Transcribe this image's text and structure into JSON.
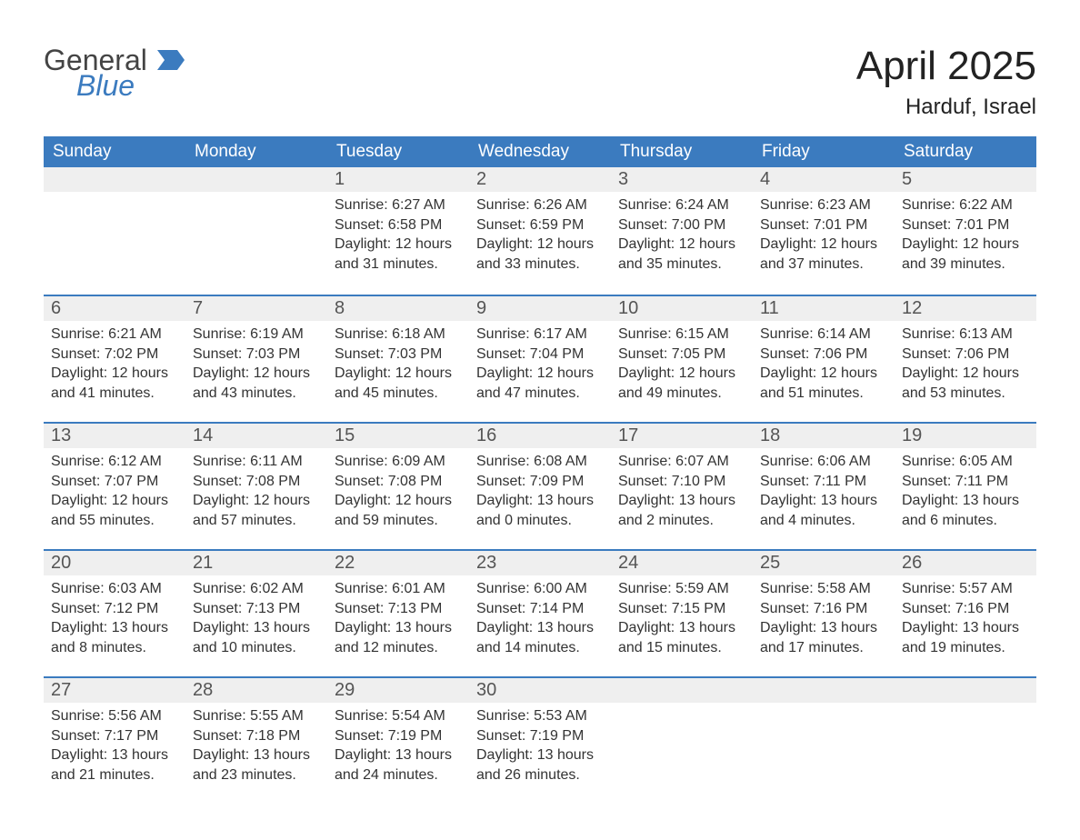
{
  "logo": {
    "word1": "General",
    "word2": "Blue"
  },
  "title": "April 2025",
  "location": "Harduf, Israel",
  "colors": {
    "brand_blue": "#3b7bbf",
    "header_text": "#ffffff",
    "daynum_bg": "#efefef",
    "text": "#333333",
    "title_text": "#222222",
    "page_bg": "#ffffff"
  },
  "typography": {
    "title_fontsize_pt": 33,
    "location_fontsize_pt": 18,
    "header_fontsize_pt": 14,
    "daynum_fontsize_pt": 15,
    "body_fontsize_pt": 12
  },
  "day_names": [
    "Sunday",
    "Monday",
    "Tuesday",
    "Wednesday",
    "Thursday",
    "Friday",
    "Saturday"
  ],
  "weeks": [
    [
      null,
      null,
      {
        "n": "1",
        "sunrise": "6:27 AM",
        "sunset": "6:58 PM",
        "daylight": "12 hours and 31 minutes."
      },
      {
        "n": "2",
        "sunrise": "6:26 AM",
        "sunset": "6:59 PM",
        "daylight": "12 hours and 33 minutes."
      },
      {
        "n": "3",
        "sunrise": "6:24 AM",
        "sunset": "7:00 PM",
        "daylight": "12 hours and 35 minutes."
      },
      {
        "n": "4",
        "sunrise": "6:23 AM",
        "sunset": "7:01 PM",
        "daylight": "12 hours and 37 minutes."
      },
      {
        "n": "5",
        "sunrise": "6:22 AM",
        "sunset": "7:01 PM",
        "daylight": "12 hours and 39 minutes."
      }
    ],
    [
      {
        "n": "6",
        "sunrise": "6:21 AM",
        "sunset": "7:02 PM",
        "daylight": "12 hours and 41 minutes."
      },
      {
        "n": "7",
        "sunrise": "6:19 AM",
        "sunset": "7:03 PM",
        "daylight": "12 hours and 43 minutes."
      },
      {
        "n": "8",
        "sunrise": "6:18 AM",
        "sunset": "7:03 PM",
        "daylight": "12 hours and 45 minutes."
      },
      {
        "n": "9",
        "sunrise": "6:17 AM",
        "sunset": "7:04 PM",
        "daylight": "12 hours and 47 minutes."
      },
      {
        "n": "10",
        "sunrise": "6:15 AM",
        "sunset": "7:05 PM",
        "daylight": "12 hours and 49 minutes."
      },
      {
        "n": "11",
        "sunrise": "6:14 AM",
        "sunset": "7:06 PM",
        "daylight": "12 hours and 51 minutes."
      },
      {
        "n": "12",
        "sunrise": "6:13 AM",
        "sunset": "7:06 PM",
        "daylight": "12 hours and 53 minutes."
      }
    ],
    [
      {
        "n": "13",
        "sunrise": "6:12 AM",
        "sunset": "7:07 PM",
        "daylight": "12 hours and 55 minutes."
      },
      {
        "n": "14",
        "sunrise": "6:11 AM",
        "sunset": "7:08 PM",
        "daylight": "12 hours and 57 minutes."
      },
      {
        "n": "15",
        "sunrise": "6:09 AM",
        "sunset": "7:08 PM",
        "daylight": "12 hours and 59 minutes."
      },
      {
        "n": "16",
        "sunrise": "6:08 AM",
        "sunset": "7:09 PM",
        "daylight": "13 hours and 0 minutes."
      },
      {
        "n": "17",
        "sunrise": "6:07 AM",
        "sunset": "7:10 PM",
        "daylight": "13 hours and 2 minutes."
      },
      {
        "n": "18",
        "sunrise": "6:06 AM",
        "sunset": "7:11 PM",
        "daylight": "13 hours and 4 minutes."
      },
      {
        "n": "19",
        "sunrise": "6:05 AM",
        "sunset": "7:11 PM",
        "daylight": "13 hours and 6 minutes."
      }
    ],
    [
      {
        "n": "20",
        "sunrise": "6:03 AM",
        "sunset": "7:12 PM",
        "daylight": "13 hours and 8 minutes."
      },
      {
        "n": "21",
        "sunrise": "6:02 AM",
        "sunset": "7:13 PM",
        "daylight": "13 hours and 10 minutes."
      },
      {
        "n": "22",
        "sunrise": "6:01 AM",
        "sunset": "7:13 PM",
        "daylight": "13 hours and 12 minutes."
      },
      {
        "n": "23",
        "sunrise": "6:00 AM",
        "sunset": "7:14 PM",
        "daylight": "13 hours and 14 minutes."
      },
      {
        "n": "24",
        "sunrise": "5:59 AM",
        "sunset": "7:15 PM",
        "daylight": "13 hours and 15 minutes."
      },
      {
        "n": "25",
        "sunrise": "5:58 AM",
        "sunset": "7:16 PM",
        "daylight": "13 hours and 17 minutes."
      },
      {
        "n": "26",
        "sunrise": "5:57 AM",
        "sunset": "7:16 PM",
        "daylight": "13 hours and 19 minutes."
      }
    ],
    [
      {
        "n": "27",
        "sunrise": "5:56 AM",
        "sunset": "7:17 PM",
        "daylight": "13 hours and 21 minutes."
      },
      {
        "n": "28",
        "sunrise": "5:55 AM",
        "sunset": "7:18 PM",
        "daylight": "13 hours and 23 minutes."
      },
      {
        "n": "29",
        "sunrise": "5:54 AM",
        "sunset": "7:19 PM",
        "daylight": "13 hours and 24 minutes."
      },
      {
        "n": "30",
        "sunrise": "5:53 AM",
        "sunset": "7:19 PM",
        "daylight": "13 hours and 26 minutes."
      },
      null,
      null,
      null
    ]
  ],
  "labels": {
    "sunrise": "Sunrise:",
    "sunset": "Sunset:",
    "daylight": "Daylight:"
  }
}
